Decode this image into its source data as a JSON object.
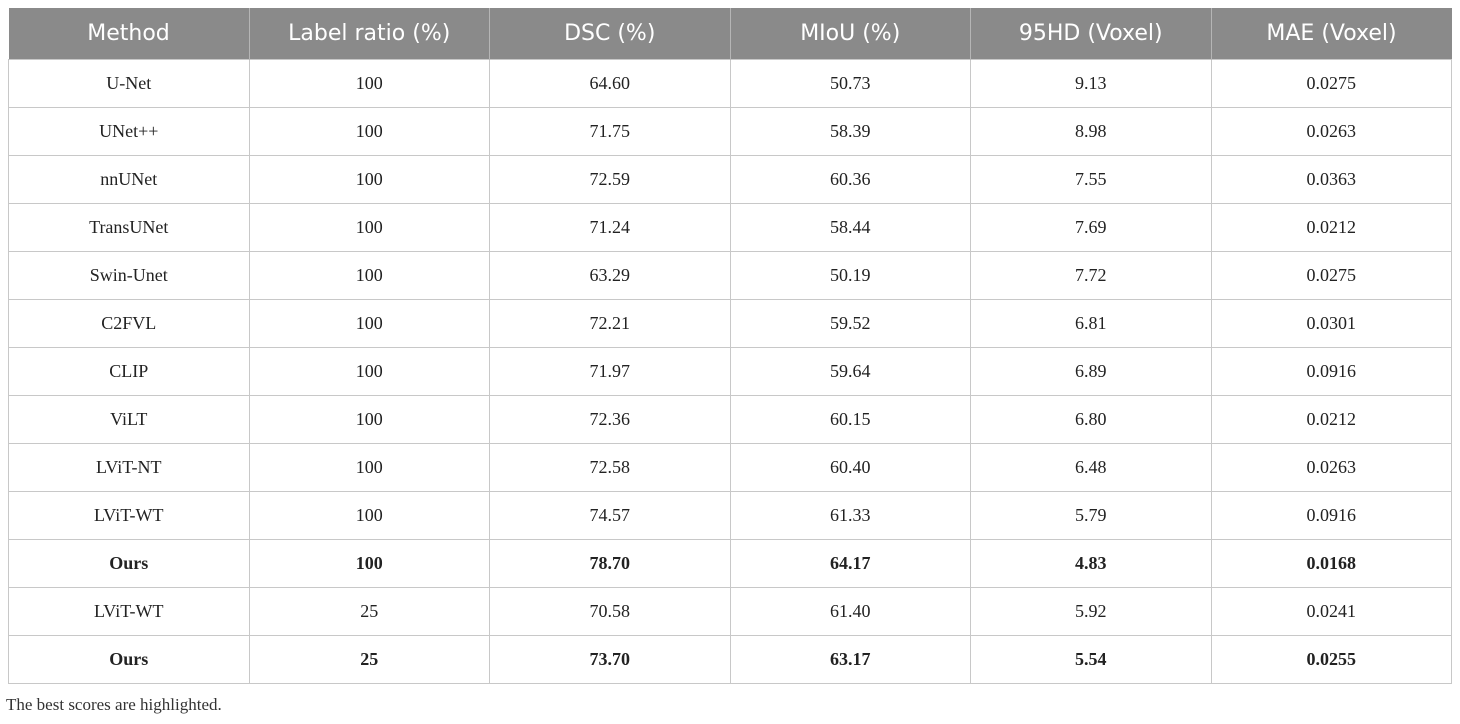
{
  "table": {
    "headers": [
      "Method",
      "Label ratio (%)",
      "DSC (%)",
      "MIoU (%)",
      "95HD (Voxel)",
      "MAE (Voxel)"
    ],
    "rows": [
      {
        "method": "U-Net",
        "label_ratio": "100",
        "dsc": "64.60",
        "miou": "50.73",
        "hd95": "9.13",
        "mae": "0.0275",
        "bold": false
      },
      {
        "method": "UNet++",
        "label_ratio": "100",
        "dsc": "71.75",
        "miou": "58.39",
        "hd95": "8.98",
        "mae": "0.0263",
        "bold": false
      },
      {
        "method": "nnUNet",
        "label_ratio": "100",
        "dsc": "72.59",
        "miou": "60.36",
        "hd95": "7.55",
        "mae": "0.0363",
        "bold": false
      },
      {
        "method": "TransUNet",
        "label_ratio": "100",
        "dsc": "71.24",
        "miou": "58.44",
        "hd95": "7.69",
        "mae": "0.0212",
        "bold": false
      },
      {
        "method": "Swin-Unet",
        "label_ratio": "100",
        "dsc": "63.29",
        "miou": "50.19",
        "hd95": "7.72",
        "mae": "0.0275",
        "bold": false
      },
      {
        "method": "C2FVL",
        "label_ratio": "100",
        "dsc": "72.21",
        "miou": "59.52",
        "hd95": "6.81",
        "mae": "0.0301",
        "bold": false
      },
      {
        "method": "CLIP",
        "label_ratio": "100",
        "dsc": "71.97",
        "miou": "59.64",
        "hd95": "6.89",
        "mae": "0.0916",
        "bold": false
      },
      {
        "method": "ViLT",
        "label_ratio": "100",
        "dsc": "72.36",
        "miou": "60.15",
        "hd95": "6.80",
        "mae": "0.0212",
        "bold": false
      },
      {
        "method": "LViT-NT",
        "label_ratio": "100",
        "dsc": "72.58",
        "miou": "60.40",
        "hd95": "6.48",
        "mae": "0.0263",
        "bold": false
      },
      {
        "method": "LViT-WT",
        "label_ratio": "100",
        "dsc": "74.57",
        "miou": "61.33",
        "hd95": "5.79",
        "mae": "0.0916",
        "bold": false
      },
      {
        "method": "Ours",
        "label_ratio": "100",
        "dsc": "78.70",
        "miou": "64.17",
        "hd95": "4.83",
        "mae": "0.0168",
        "bold": true
      },
      {
        "method": "LViT-WT",
        "label_ratio": "25",
        "dsc": "70.58",
        "miou": "61.40",
        "hd95": "5.92",
        "mae": "0.0241",
        "bold": false
      },
      {
        "method": "Ours",
        "label_ratio": "25",
        "dsc": "73.70",
        "miou": "63.17",
        "hd95": "5.54",
        "mae": "0.0255",
        "bold": true
      }
    ]
  },
  "footnote": "The best scores are highlighted.",
  "colors": {
    "header_background": "#8a8a8a",
    "header_text": "#ffffff",
    "grid_line": "#c8c8c8"
  }
}
